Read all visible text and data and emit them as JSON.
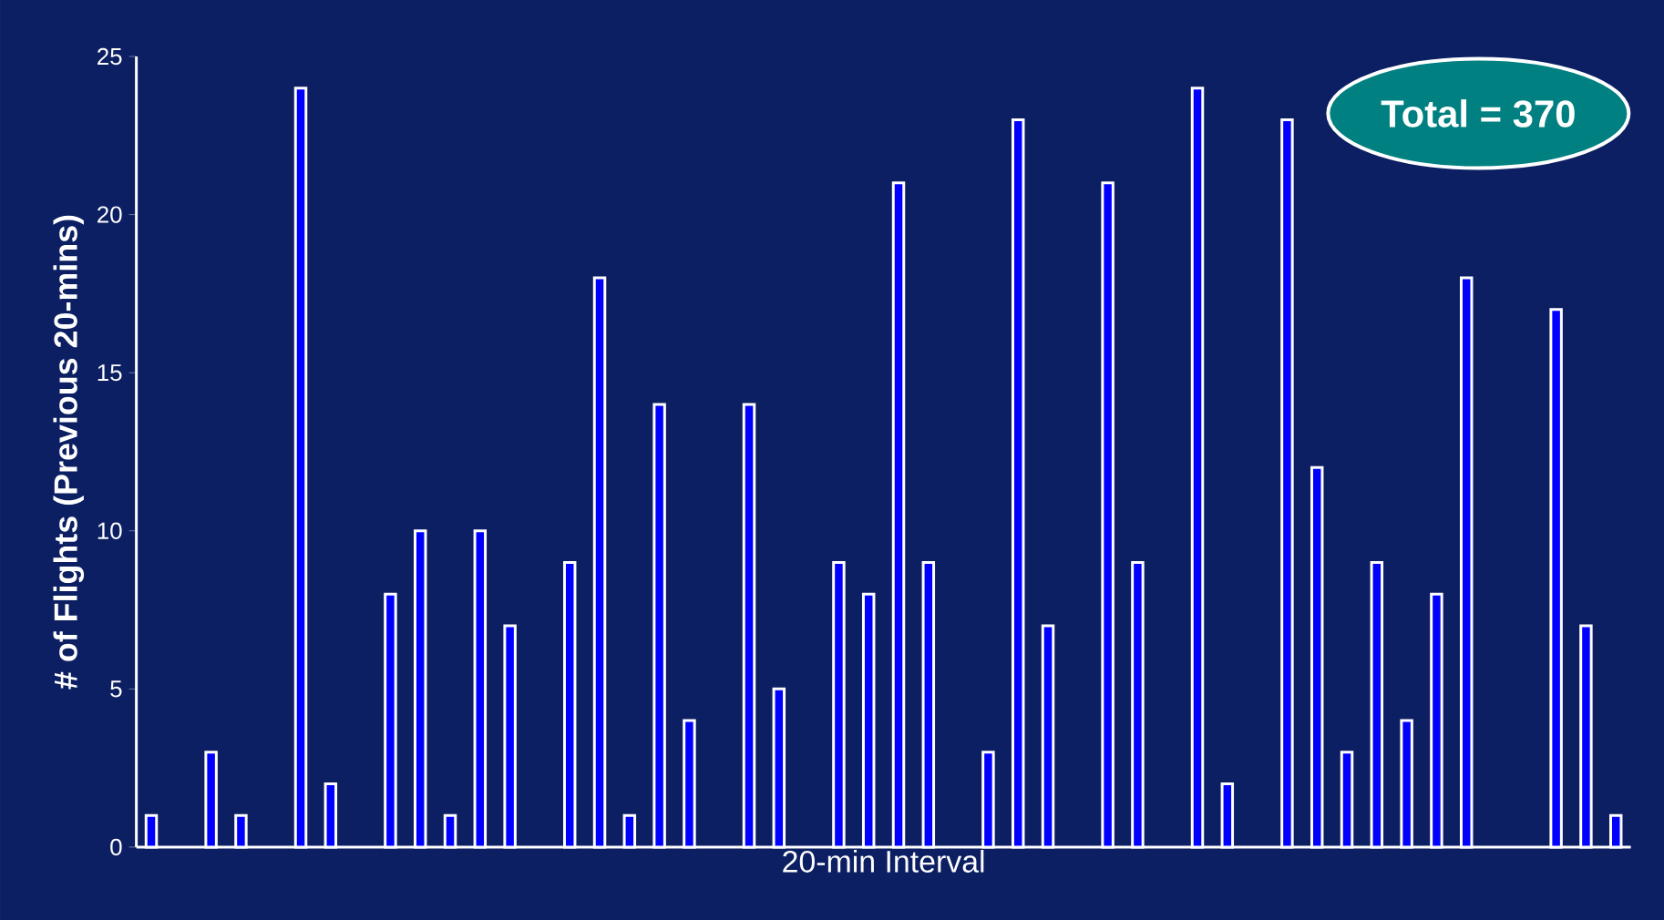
{
  "chart_data": {
    "type": "bar",
    "ylabel": "# of Flights (Previous 20-mins)",
    "xlabel": "20-min Interval",
    "annotations": [
      "Total = 370"
    ],
    "categories": [
      null,
      null,
      null,
      null,
      null,
      null,
      null,
      null,
      null,
      null,
      null,
      null,
      null,
      null,
      null,
      null,
      null,
      null,
      null,
      null,
      null,
      null,
      null,
      null,
      null,
      null,
      null,
      null,
      null,
      null,
      null,
      null,
      null,
      null,
      null,
      null,
      null,
      null,
      null,
      null,
      null,
      null,
      null,
      null,
      null,
      null,
      null,
      null,
      null,
      null
    ],
    "values": [
      1,
      null,
      3,
      1,
      null,
      24,
      2,
      null,
      8,
      10,
      1,
      10,
      7,
      null,
      9,
      18,
      1,
      14,
      4,
      null,
      14,
      5,
      null,
      9,
      8,
      21,
      9,
      null,
      3,
      23,
      7,
      null,
      21,
      9,
      null,
      24,
      2,
      null,
      23,
      12,
      3,
      9,
      4,
      8,
      18,
      null,
      null,
      17,
      7,
      1
    ],
    "color": "#0000ff",
    "ylim": [
      0,
      25
    ],
    "yticks": [
      0,
      5,
      10,
      15,
      20,
      25
    ],
    "grid": false
  }
}
